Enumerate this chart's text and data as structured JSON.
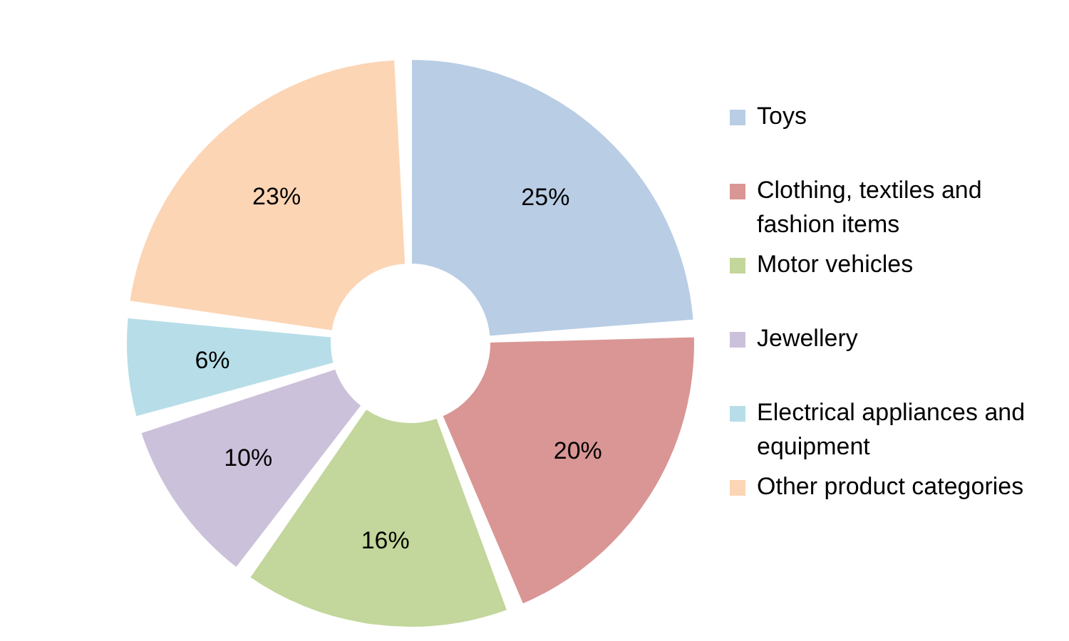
{
  "chart_data": {
    "type": "donut",
    "categories": [
      "Toys",
      "Clothing, textiles and fashion items",
      "Motor vehicles",
      "Jewellery",
      "Electrical appliances and equipment",
      "Other product categories"
    ],
    "values": [
      25,
      20,
      16,
      10,
      6,
      23
    ],
    "value_labels": [
      "25%",
      "20%",
      "16%",
      "10%",
      "6%",
      "23%"
    ],
    "colors": [
      "#b9cde5",
      "#d99694",
      "#c3d69b",
      "#ccc1da",
      "#b7dee8",
      "#fcd5b5"
    ],
    "legend": "right"
  }
}
